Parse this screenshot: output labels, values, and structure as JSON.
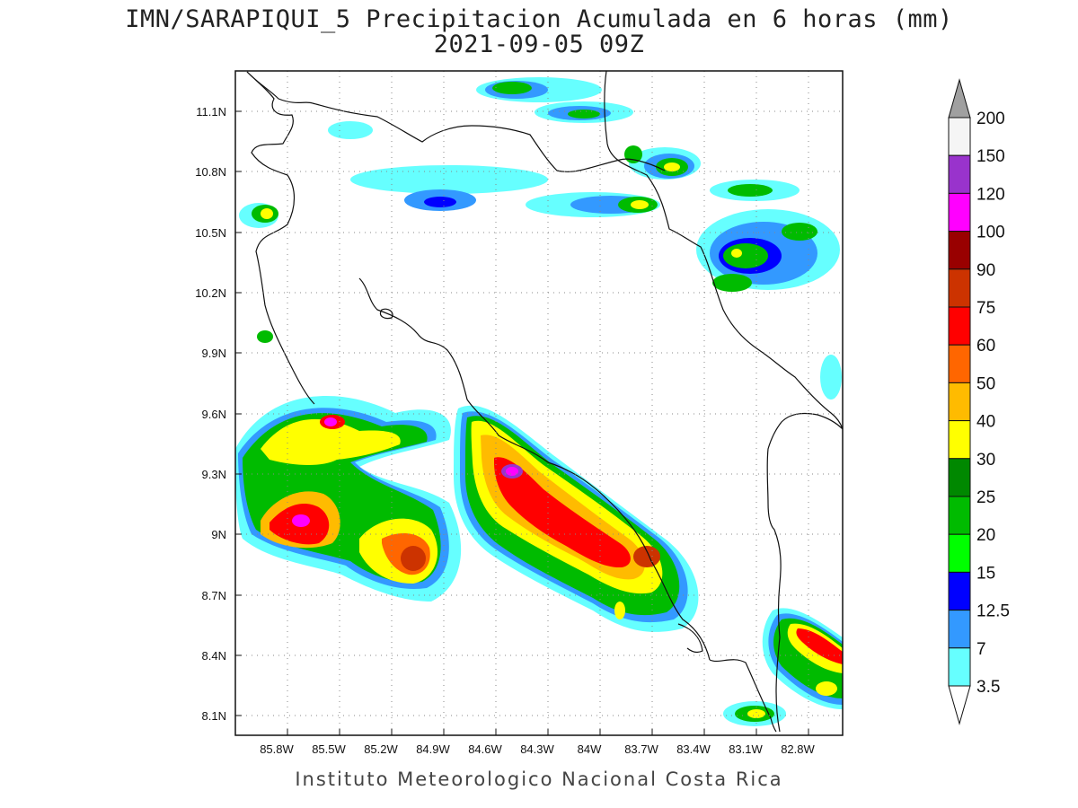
{
  "title": {
    "line1": "IMN/SARAPIQUI_5 Precipitacion Acumulada en 6 horas (mm)",
    "line2": "2021-09-05 09Z"
  },
  "footer": "Instituto Meteorologico Nacional Costa Rica",
  "map": {
    "lon_range": [
      -86.05,
      -82.55
    ],
    "lat_range": [
      8.0,
      11.3
    ],
    "lon_ticks": [
      "85.8W",
      "85.5W",
      "85.2W",
      "84.9W",
      "84.6W",
      "84.3W",
      "84W",
      "83.7W",
      "83.4W",
      "83.1W",
      "82.8W"
    ],
    "lat_ticks": [
      "11.1N",
      "10.8N",
      "10.5N",
      "10.2N",
      "9.9N",
      "9.6N",
      "9.3N",
      "9N",
      "8.7N",
      "8.4N",
      "8.1N"
    ],
    "grid": "dotted"
  },
  "legend": {
    "levels": [
      "200",
      "150",
      "120",
      "100",
      "90",
      "75",
      "60",
      "50",
      "40",
      "30",
      "25",
      "20",
      "15",
      "12.5",
      "7",
      "3.5"
    ],
    "colors": [
      "#a0a0a0",
      "#f5f5f5",
      "#9933cc",
      "#ff00ff",
      "#990000",
      "#cc3300",
      "#ff0000",
      "#ff6600",
      "#ffbb00",
      "#ffff00",
      "#008800",
      "#00bb00",
      "#00ff00",
      "#0000ff",
      "#3399ff",
      "#66ffff"
    ]
  }
}
